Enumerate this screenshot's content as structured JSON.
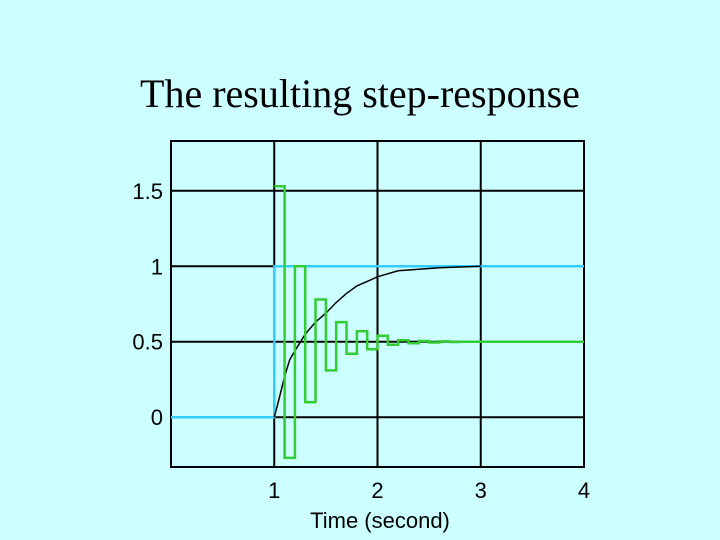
{
  "chart_data": {
    "type": "line",
    "title": "The resulting step-response",
    "xlabel": "Time (second)",
    "ylabel": "",
    "xlim": [
      0.0,
      4.0
    ],
    "ylim": [
      -0.33,
      1.83
    ],
    "xticks": [
      "1",
      "2",
      "3",
      "4"
    ],
    "xtick_values": [
      1,
      2,
      3,
      4
    ],
    "yticks": [
      "0",
      "0.5",
      "1",
      "1.5"
    ],
    "ytick_values": [
      0,
      0.5,
      1,
      1.5
    ],
    "grid": true,
    "legend": "none",
    "series": [
      {
        "color": "#33ccff",
        "style": "step",
        "x": [
          0.0,
          1.0,
          1.0,
          4.0
        ],
        "y": [
          0.0,
          0.0,
          1.0,
          1.0
        ]
      },
      {
        "color": "#000000",
        "style": "line",
        "x": [
          1.0,
          1.05,
          1.1,
          1.15,
          1.2,
          1.3,
          1.4,
          1.5,
          1.6,
          1.7,
          1.8,
          1.9,
          2.0,
          2.2,
          2.4,
          2.6,
          2.8,
          3.0
        ],
        "y": [
          0.0,
          0.13,
          0.27,
          0.38,
          0.44,
          0.55,
          0.63,
          0.69,
          0.76,
          0.82,
          0.87,
          0.9,
          0.93,
          0.97,
          0.98,
          0.99,
          0.995,
          1.0
        ]
      },
      {
        "color": "#33cc33",
        "style": "step",
        "x": [
          1.0,
          1.1,
          1.2,
          1.3,
          1.4,
          1.5,
          1.6,
          1.7,
          1.8,
          1.9,
          2.0,
          2.1,
          2.2,
          2.3,
          2.4,
          2.5,
          2.6,
          2.7,
          2.8,
          4.0
        ],
        "y": [
          1.53,
          -0.27,
          1.0,
          0.1,
          0.78,
          0.31,
          0.63,
          0.42,
          0.57,
          0.45,
          0.54,
          0.48,
          0.51,
          0.49,
          0.505,
          0.495,
          0.502,
          0.498,
          0.5,
          0.5
        ]
      }
    ]
  },
  "colors": {
    "background": "#ccffff",
    "grid": "#000000"
  }
}
